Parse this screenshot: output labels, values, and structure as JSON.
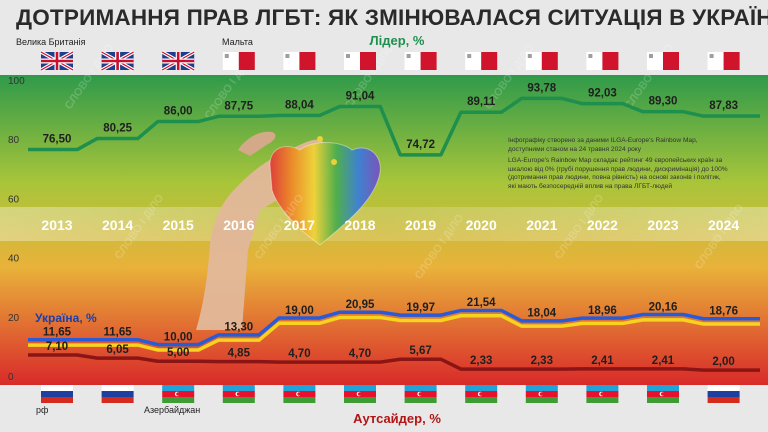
{
  "title": "ДОТРИМАННЯ ПРАВ ЛГБТ: ЯК ЗМІНЮВАЛАСЯ СИТУАЦІЯ В УКРАЇНІ",
  "labels": {
    "leader_country_1": "Велика Британія",
    "leader_country_2": "Мальта",
    "outsider_country_1": "рф",
    "outsider_country_2": "Азербайджан"
  },
  "note": {
    "source": "Інфографіку створено за даними ILGA-Europe's Rainbow Map, доступними станом на 24 травня 2024 року",
    "explanation": "LGA-Europe's Rainbow Map складає рейтинг 49 європейських країн за шкалою від 0% (грубі порушення прав людини, дискримінація) до 100% (дотримання прав людини, повна рівність) на основі законів і політик, які мають безпосередній вплив на права ЛГБТ-людей"
  },
  "watermark": "СЛОВО І ДІЛО",
  "colors": {
    "leader": "#1f8f4e",
    "ukraine_blue": "#2a5bd7",
    "ukraine_yellow": "#f7d21e",
    "outsider": "#8b1414",
    "title": "#2a2a2a"
  },
  "chart_data": {
    "type": "line",
    "categories": [
      "2013",
      "2014",
      "2015",
      "2016",
      "2017",
      "2018",
      "2019",
      "2020",
      "2021",
      "2022",
      "2023",
      "2024"
    ],
    "ylim": [
      0,
      100
    ],
    "yticks": [
      "0",
      "20",
      "40",
      "60",
      "80",
      "100"
    ],
    "series": [
      {
        "name": "Лідер, %",
        "values": [
          76.5,
          80.25,
          86.0,
          87.75,
          88.04,
          91.04,
          74.72,
          89.11,
          93.78,
          92.03,
          89.3,
          87.83
        ],
        "labels": [
          "76,50",
          "80,25",
          "86,00",
          "87,75",
          "88,04",
          "91,04",
          "74,72",
          "89,11",
          "93,78",
          "92,03",
          "89,30",
          "87,83"
        ],
        "countries": [
          "uk",
          "uk",
          "uk",
          "malta",
          "malta",
          "malta",
          "malta",
          "malta",
          "malta",
          "malta",
          "malta",
          "malta"
        ]
      },
      {
        "name": "Україна, %",
        "values": [
          11.65,
          11.65,
          10.0,
          13.3,
          19.0,
          20.95,
          19.97,
          21.54,
          18.04,
          18.96,
          20.16,
          18.76
        ],
        "labels": [
          "11,65",
          "11,65",
          "10,00",
          "13,30",
          "19,00",
          "20,95",
          "19,97",
          "21,54",
          "18,04",
          "18,96",
          "20,16",
          "18,76"
        ]
      },
      {
        "name": "Аутсайдер, %",
        "values": [
          7.1,
          6.05,
          5.0,
          4.85,
          4.7,
          4.7,
          5.67,
          2.33,
          2.33,
          2.41,
          2.41,
          2.0
        ],
        "labels": [
          "7,10",
          "6,05",
          "5,00",
          "4,85",
          "4,70",
          "4,70",
          "5,67",
          "2,33",
          "2,33",
          "2,41",
          "2,41",
          "2,00"
        ],
        "countries": [
          "russia",
          "russia",
          "azerbaijan",
          "azerbaijan",
          "azerbaijan",
          "azerbaijan",
          "azerbaijan",
          "azerbaijan",
          "azerbaijan",
          "azerbaijan",
          "azerbaijan",
          "russia"
        ]
      }
    ]
  }
}
